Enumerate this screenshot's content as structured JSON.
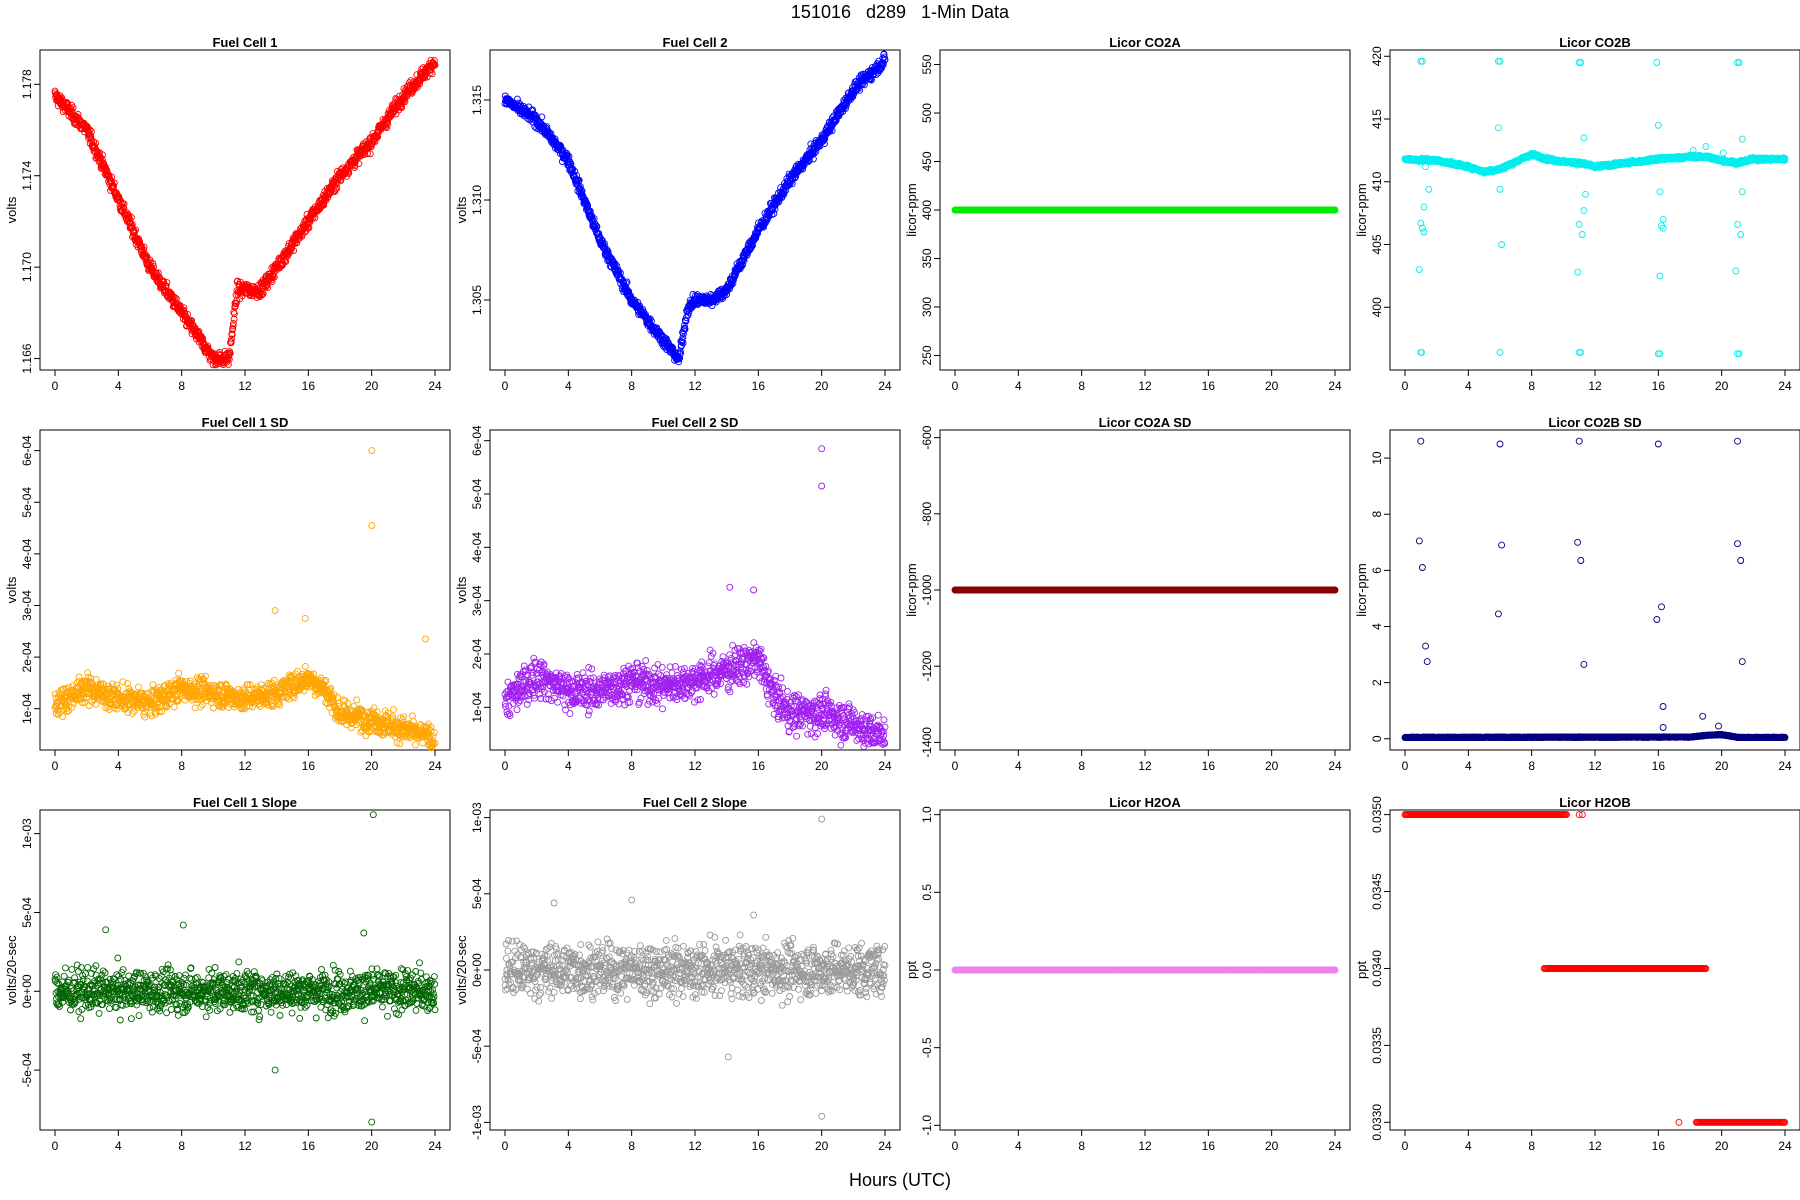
{
  "figure": {
    "title": "151016   d289   1-Min Data",
    "xlabel": "Hours (UTC)"
  },
  "chart_data": [
    {
      "id": "fc1",
      "type": "scatter",
      "title": "Fuel Cell 1",
      "ylabel": "volts",
      "color": "#ff0000",
      "xlim": [
        0,
        24
      ],
      "ylim": [
        1.1655,
        1.1795
      ],
      "yticks": [
        1.166,
        1.17,
        1.174,
        1.178
      ],
      "yticklabels": [
        "1.166",
        "1.170",
        "1.174",
        "1.178"
      ],
      "xticks": [
        0,
        4,
        8,
        12,
        16,
        20,
        24
      ],
      "trend": [
        [
          0,
          1.1775
        ],
        [
          2,
          1.176
        ],
        [
          4,
          1.173
        ],
        [
          6,
          1.17
        ],
        [
          8,
          1.168
        ],
        [
          9,
          1.167
        ],
        [
          10,
          1.166
        ],
        [
          11,
          1.166
        ],
        [
          11.5,
          1.169
        ],
        [
          12,
          1.169
        ],
        [
          13,
          1.169
        ],
        [
          14,
          1.17
        ],
        [
          16,
          1.172
        ],
        [
          18,
          1.174
        ],
        [
          20,
          1.1755
        ],
        [
          22,
          1.1775
        ],
        [
          24,
          1.179
        ]
      ],
      "noise": 0.0003
    },
    {
      "id": "fc2",
      "type": "scatter",
      "title": "Fuel Cell 2",
      "ylabel": "volts",
      "color": "#0000ff",
      "xlim": [
        0,
        24
      ],
      "ylim": [
        1.3015,
        1.3175
      ],
      "yticks": [
        1.305,
        1.31,
        1.315
      ],
      "yticklabels": [
        "1.305",
        "1.310",
        "1.315"
      ],
      "xticks": [
        0,
        4,
        8,
        12,
        16,
        20,
        24
      ],
      "trend": [
        [
          0,
          1.315
        ],
        [
          2,
          1.314
        ],
        [
          4,
          1.312
        ],
        [
          6,
          1.308
        ],
        [
          8,
          1.305
        ],
        [
          10,
          1.303
        ],
        [
          11,
          1.302
        ],
        [
          11.5,
          1.3045
        ],
        [
          12,
          1.305
        ],
        [
          13,
          1.305
        ],
        [
          14,
          1.3055
        ],
        [
          16,
          1.3085
        ],
        [
          18,
          1.311
        ],
        [
          20,
          1.313
        ],
        [
          22,
          1.3155
        ],
        [
          24,
          1.317
        ]
      ],
      "noise": 0.0003
    },
    {
      "id": "co2a",
      "type": "scatter",
      "title": "Licor CO2A",
      "ylabel": "licor-ppm",
      "color": "#00ee00",
      "xlim": [
        0,
        24
      ],
      "ylim": [
        235,
        565
      ],
      "yticks": [
        250,
        300,
        350,
        400,
        450,
        500,
        550
      ],
      "yticklabels": [
        "250",
        "300",
        "350",
        "400",
        "450",
        "500",
        "550"
      ],
      "xticks": [
        0,
        4,
        8,
        12,
        16,
        20,
        24
      ],
      "trend": [
        [
          0,
          400
        ],
        [
          24,
          400
        ]
      ],
      "noise": 0
    },
    {
      "id": "co2b",
      "type": "scatter",
      "title": "Licor CO2B",
      "ylabel": "licor-ppm",
      "color": "#00eeee",
      "xlim": [
        0,
        24
      ],
      "ylim": [
        395,
        420.5
      ],
      "yticks": [
        400,
        405,
        410,
        415,
        420
      ],
      "yticklabels": [
        "400",
        "405",
        "410",
        "415",
        "420"
      ],
      "xticks": [
        0,
        4,
        8,
        12,
        16,
        20,
        24
      ],
      "trend": [
        [
          0,
          411.8
        ],
        [
          2,
          411.7
        ],
        [
          4,
          411.2
        ],
        [
          5,
          410.8
        ],
        [
          6,
          411.0
        ],
        [
          7,
          411.6
        ],
        [
          8,
          412.2
        ],
        [
          9,
          411.8
        ],
        [
          10,
          411.6
        ],
        [
          11,
          411.5
        ],
        [
          12,
          411.2
        ],
        [
          14,
          411.5
        ],
        [
          16,
          411.8
        ],
        [
          18,
          412.0
        ],
        [
          19,
          412.0
        ],
        [
          20,
          411.7
        ],
        [
          21,
          411.5
        ],
        [
          22,
          411.8
        ],
        [
          24,
          411.8
        ]
      ],
      "noise": 0.12,
      "outliers": [
        [
          0.1,
          411.8
        ],
        [
          1.0,
          419.6
        ],
        [
          1.1,
          419.6
        ],
        [
          1.0,
          406.7
        ],
        [
          1.1,
          406.3
        ],
        [
          1.2,
          406.0
        ],
        [
          1.2,
          408.0
        ],
        [
          1.5,
          409.4
        ],
        [
          1.3,
          411.2
        ],
        [
          0.9,
          403.0
        ],
        [
          1.0,
          396.4
        ],
        [
          1.05,
          396.4
        ],
        [
          5.9,
          419.6
        ],
        [
          6.0,
          419.6
        ],
        [
          6.0,
          409.4
        ],
        [
          6.1,
          405.0
        ],
        [
          5.9,
          414.3
        ],
        [
          6.0,
          396.4
        ],
        [
          11.0,
          419.5
        ],
        [
          11.1,
          419.5
        ],
        [
          11.0,
          406.6
        ],
        [
          11.2,
          405.8
        ],
        [
          11.3,
          407.7
        ],
        [
          11.4,
          409.0
        ],
        [
          11.3,
          413.5
        ],
        [
          10.9,
          402.8
        ],
        [
          11.0,
          396.4
        ],
        [
          11.1,
          396.4
        ],
        [
          15.9,
          419.5
        ],
        [
          16.0,
          414.5
        ],
        [
          16.2,
          406.5
        ],
        [
          16.3,
          406.3
        ],
        [
          16.3,
          407.0
        ],
        [
          16.1,
          409.2
        ],
        [
          16.1,
          402.5
        ],
        [
          16.0,
          396.3
        ],
        [
          16.1,
          396.3
        ],
        [
          21.0,
          419.5
        ],
        [
          21.1,
          419.5
        ],
        [
          21.0,
          406.6
        ],
        [
          21.2,
          405.8
        ],
        [
          21.3,
          409.2
        ],
        [
          21.3,
          413.4
        ],
        [
          20.9,
          402.9
        ],
        [
          21.0,
          396.3
        ],
        [
          21.1,
          396.3
        ],
        [
          18.2,
          412.5
        ],
        [
          19.0,
          412.8
        ],
        [
          20.1,
          412.3
        ]
      ]
    },
    {
      "id": "fc1sd",
      "type": "scatter",
      "title": "Fuel Cell 1 SD",
      "ylabel": "volts",
      "color": "#ffa500",
      "xlim": [
        0,
        24
      ],
      "ylim": [
        2e-05,
        0.00064
      ],
      "yticks": [
        0.0001,
        0.0002,
        0.0003,
        0.0004,
        0.0005,
        0.0006
      ],
      "yticklabels": [
        "1e-04",
        "2e-04",
        "3e-04",
        "4e-04",
        "5e-04",
        "6e-04"
      ],
      "xticks": [
        0,
        4,
        8,
        12,
        16,
        20,
        24
      ],
      "trend": [
        [
          0,
          0.00011
        ],
        [
          2,
          0.00014
        ],
        [
          4,
          0.00012
        ],
        [
          6,
          0.00011
        ],
        [
          8,
          0.00014
        ],
        [
          10,
          0.00013
        ],
        [
          12,
          0.00012
        ],
        [
          14,
          0.00013
        ],
        [
          16,
          0.00016
        ],
        [
          17,
          0.00014
        ],
        [
          18,
          9e-05
        ],
        [
          20,
          8e-05
        ],
        [
          22,
          6e-05
        ],
        [
          24,
          4e-05
        ]
      ],
      "noise": 2.5e-05,
      "outliers": [
        [
          20.0,
          0.0006
        ],
        [
          20.0,
          0.000455
        ],
        [
          23.4,
          0.000235
        ],
        [
          13.9,
          0.00029
        ],
        [
          15.8,
          0.000275
        ]
      ]
    },
    {
      "id": "fc2sd",
      "type": "scatter",
      "title": "Fuel Cell 2 SD",
      "ylabel": "volts",
      "color": "#a020f0",
      "xlim": [
        0,
        24
      ],
      "ylim": [
        2e-05,
        0.00062
      ],
      "yticks": [
        0.0001,
        0.0002,
        0.0003,
        0.0004,
        0.0005,
        0.0006
      ],
      "yticklabels": [
        "1e-04",
        "2e-04",
        "3e-04",
        "4e-04",
        "5e-04",
        "6e-04"
      ],
      "xticks": [
        0,
        4,
        8,
        12,
        16,
        20,
        24
      ],
      "trend": [
        [
          0,
          0.00011
        ],
        [
          2,
          0.00016
        ],
        [
          4,
          0.00013
        ],
        [
          6,
          0.00013
        ],
        [
          8,
          0.00015
        ],
        [
          10,
          0.00014
        ],
        [
          12,
          0.00015
        ],
        [
          14,
          0.00017
        ],
        [
          16,
          0.00019
        ],
        [
          17,
          0.00012
        ],
        [
          18,
          9e-05
        ],
        [
          20,
          9e-05
        ],
        [
          22,
          7e-05
        ],
        [
          24,
          4e-05
        ]
      ],
      "noise": 3.5e-05,
      "outliers": [
        [
          20.0,
          0.000585
        ],
        [
          20.0,
          0.000515
        ],
        [
          14.2,
          0.000325
        ],
        [
          15.7,
          0.00032
        ]
      ]
    },
    {
      "id": "co2asd",
      "type": "scatter",
      "title": "Licor CO2A SD",
      "ylabel": "licor-ppm",
      "color": "#8b0000",
      "xlim": [
        0,
        24
      ],
      "ylim": [
        -1420,
        -580
      ],
      "yticks": [
        -1400,
        -1200,
        -1000,
        -800,
        -600
      ],
      "yticklabels": [
        "-1400",
        "-1200",
        "-1000",
        "-800",
        "-600"
      ],
      "xticks": [
        0,
        4,
        8,
        12,
        16,
        20,
        24
      ],
      "trend": [
        [
          0,
          -1000
        ],
        [
          24,
          -1000
        ]
      ],
      "noise": 0
    },
    {
      "id": "co2bsd",
      "type": "scatter",
      "title": "Licor CO2B SD",
      "ylabel": "licor-ppm",
      "color": "#000080",
      "xlim": [
        0,
        24
      ],
      "ylim": [
        -0.4,
        11.0
      ],
      "yticks": [
        0,
        2,
        4,
        6,
        8,
        10
      ],
      "yticklabels": [
        "0",
        "2",
        "4",
        "6",
        "8",
        "10"
      ],
      "xticks": [
        0,
        4,
        8,
        12,
        16,
        20,
        24
      ],
      "trend": [
        [
          0,
          0.05
        ],
        [
          18,
          0.06
        ],
        [
          19,
          0.12
        ],
        [
          20,
          0.15
        ],
        [
          21,
          0.05
        ],
        [
          24,
          0.05
        ]
      ],
      "noise": 0.01,
      "outliers": [
        [
          1.0,
          10.6
        ],
        [
          0.9,
          7.05
        ],
        [
          1.1,
          6.1
        ],
        [
          1.3,
          3.3
        ],
        [
          1.4,
          2.75
        ],
        [
          6.0,
          10.5
        ],
        [
          6.1,
          6.9
        ],
        [
          5.9,
          4.45
        ],
        [
          11.0,
          10.6
        ],
        [
          10.9,
          7.0
        ],
        [
          11.1,
          6.35
        ],
        [
          11.3,
          2.65
        ],
        [
          16.0,
          10.5
        ],
        [
          16.2,
          4.7
        ],
        [
          15.9,
          4.25
        ],
        [
          16.3,
          1.15
        ],
        [
          16.3,
          0.4
        ],
        [
          18.8,
          0.8
        ],
        [
          19.8,
          0.45
        ],
        [
          21.0,
          10.6
        ],
        [
          21.0,
          6.95
        ],
        [
          21.2,
          6.35
        ],
        [
          21.3,
          2.75
        ]
      ]
    },
    {
      "id": "fc1slope",
      "type": "scatter",
      "title": "Fuel Cell 1 Slope",
      "ylabel": "volts/20-sec",
      "color": "#006400",
      "xlim": [
        0,
        24
      ],
      "ylim": [
        -0.00088,
        0.00115
      ],
      "yticks": [
        -0.0005,
        0,
        0.0005,
        0.001
      ],
      "yticklabels": [
        "-5e-04",
        "0e+00",
        "5e-04",
        "1e-03"
      ],
      "xticks": [
        0,
        4,
        8,
        12,
        16,
        20,
        24
      ],
      "trend": [
        [
          0,
          0
        ],
        [
          24,
          0
        ]
      ],
      "noise": 0.00013,
      "outliers": [
        [
          20.1,
          0.00112
        ],
        [
          20.0,
          -0.00083
        ],
        [
          13.9,
          -0.0005
        ],
        [
          3.2,
          0.00039
        ],
        [
          8.1,
          0.00042
        ],
        [
          19.5,
          0.00037
        ]
      ]
    },
    {
      "id": "fc2slope",
      "type": "scatter",
      "title": "Fuel Cell 2 Slope",
      "ylabel": "volts/20-sec",
      "color": "#999999",
      "xlim": [
        0,
        24
      ],
      "ylim": [
        -0.00105,
        0.00105
      ],
      "yticks": [
        -0.001,
        -0.0005,
        0,
        0.0005,
        0.001
      ],
      "yticklabels": [
        "-1e-03",
        "-5e-04",
        "0e+00",
        "5e-04",
        "1e-03"
      ],
      "xticks": [
        0,
        4,
        8,
        12,
        16,
        20,
        24
      ],
      "trend": [
        [
          0,
          0
        ],
        [
          24,
          0
        ]
      ],
      "noise": 0.00017,
      "outliers": [
        [
          20.0,
          0.00099
        ],
        [
          20.0,
          -0.00096
        ],
        [
          14.1,
          -0.00057
        ],
        [
          3.1,
          0.00044
        ],
        [
          8.0,
          0.00046
        ],
        [
          15.7,
          0.00036
        ]
      ]
    },
    {
      "id": "h2oa",
      "type": "scatter",
      "title": "Licor H2OA",
      "ylabel": "ppt",
      "color": "#ee82ee",
      "xlim": [
        0,
        24
      ],
      "ylim": [
        -1.03,
        1.03
      ],
      "yticks": [
        -1.0,
        -0.5,
        0.0,
        0.5,
        1.0
      ],
      "yticklabels": [
        "-1.0",
        "-0.5",
        "0.0",
        "0.5",
        "1.0"
      ],
      "xticks": [
        0,
        4,
        8,
        12,
        16,
        20,
        24
      ],
      "trend": [
        [
          0,
          0
        ],
        [
          24,
          0
        ]
      ],
      "noise": 0
    },
    {
      "id": "h2ob",
      "type": "scatter",
      "title": "Licor H2OB",
      "ylabel": "ppt",
      "color": "#ff0000",
      "xlim": [
        0,
        24
      ],
      "ylim": [
        0.03295,
        0.03503
      ],
      "yticks": [
        0.033,
        0.0335,
        0.034,
        0.0345,
        0.035
      ],
      "yticklabels": [
        "0.0330",
        "0.0335",
        "0.0340",
        "0.0345",
        "0.0350"
      ],
      "xticks": [
        0,
        4,
        8,
        12,
        16,
        20,
        24
      ],
      "segments": [
        [
          0,
          10.2,
          0.035
        ],
        [
          8.8,
          19.0,
          0.034
        ],
        [
          18.4,
          24,
          0.033
        ]
      ],
      "outliers": [
        [
          11.0,
          0.035
        ],
        [
          11.2,
          0.035
        ],
        [
          17.3,
          0.033
        ]
      ]
    }
  ]
}
